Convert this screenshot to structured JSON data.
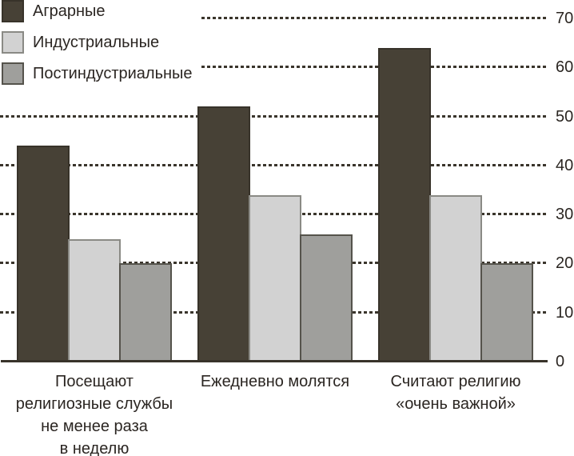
{
  "legend": {
    "items": [
      {
        "label": "Аграрные",
        "color": "#474136",
        "border": "#38332a"
      },
      {
        "label": "Индустриальные",
        "color": "#d2d2d2",
        "border": "#8a8a85"
      },
      {
        "label": "Постиндустриальные",
        "color": "#9f9f9c",
        "border": "#55534c"
      }
    ]
  },
  "chart_data": {
    "type": "bar",
    "categories": [
      "Посещают религиозные службы не менее раза в неделю",
      "Ежедневно молятся",
      "Считают религию «очень важной»"
    ],
    "category_lines": [
      [
        "Посещают",
        "религиозные службы",
        "не менее раза",
        "в неделю"
      ],
      [
        "Ежедневно молятся"
      ],
      [
        "Считают религию",
        "«очень важной»"
      ]
    ],
    "series": [
      {
        "name": "Аграрные",
        "values": [
          44,
          52,
          64
        ],
        "color": "#474136",
        "border": "#38332a"
      },
      {
        "name": "Индустриальные",
        "values": [
          25,
          34,
          34
        ],
        "color": "#d2d2d2",
        "border": "#8a8a85"
      },
      {
        "name": "Постиндустриальные",
        "values": [
          20,
          26,
          20
        ],
        "color": "#9f9f9c",
        "border": "#55534c"
      }
    ],
    "ylim": [
      0,
      70
    ],
    "yticks": [
      0,
      10,
      20,
      30,
      40,
      50,
      60,
      70
    ],
    "yaxis_side": "right",
    "grid": "horizontal-dotted",
    "legend_position": "top-left",
    "title": "",
    "xlabel": "",
    "ylabel": ""
  },
  "colors": {
    "grid": "#3a352c",
    "axis": "#38332a",
    "text": "#2b2622",
    "background": "#ffffff"
  }
}
